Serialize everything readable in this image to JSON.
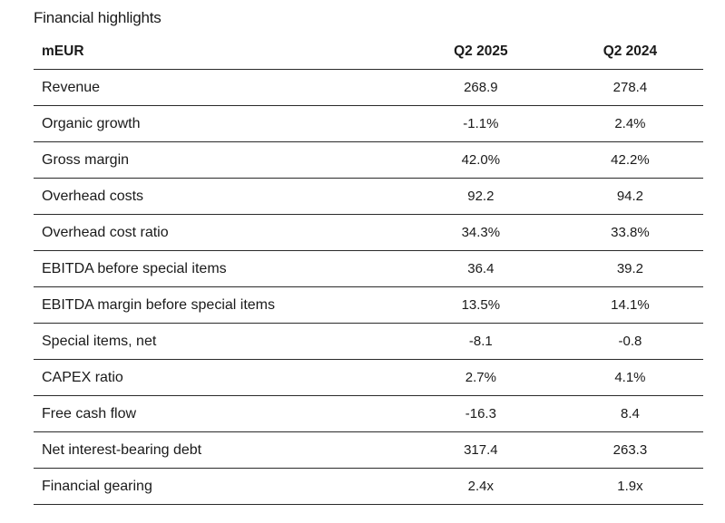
{
  "title": "Financial highlights",
  "table": {
    "headers": [
      "mEUR",
      "Q2 2025",
      "Q2 2024"
    ],
    "rows": [
      [
        "Revenue",
        "268.9",
        "278.4"
      ],
      [
        "Organic growth",
        "-1.1%",
        "2.4%"
      ],
      [
        "Gross margin",
        "42.0%",
        "42.2%"
      ],
      [
        "Overhead costs",
        "92.2",
        "94.2"
      ],
      [
        "Overhead cost ratio",
        "34.3%",
        "33.8%"
      ],
      [
        "EBITDA before special items",
        "36.4",
        "39.2"
      ],
      [
        "EBITDA margin before special items",
        "13.5%",
        "14.1%"
      ],
      [
        "Special items, net",
        "-8.1",
        "-0.8"
      ],
      [
        "CAPEX ratio",
        "2.7%",
        "4.1%"
      ],
      [
        "Free cash flow",
        "-16.3",
        "8.4"
      ],
      [
        "Net interest-bearing debt",
        "317.4",
        "263.3"
      ],
      [
        "Financial gearing",
        "2.4x",
        "1.9x"
      ]
    ]
  }
}
